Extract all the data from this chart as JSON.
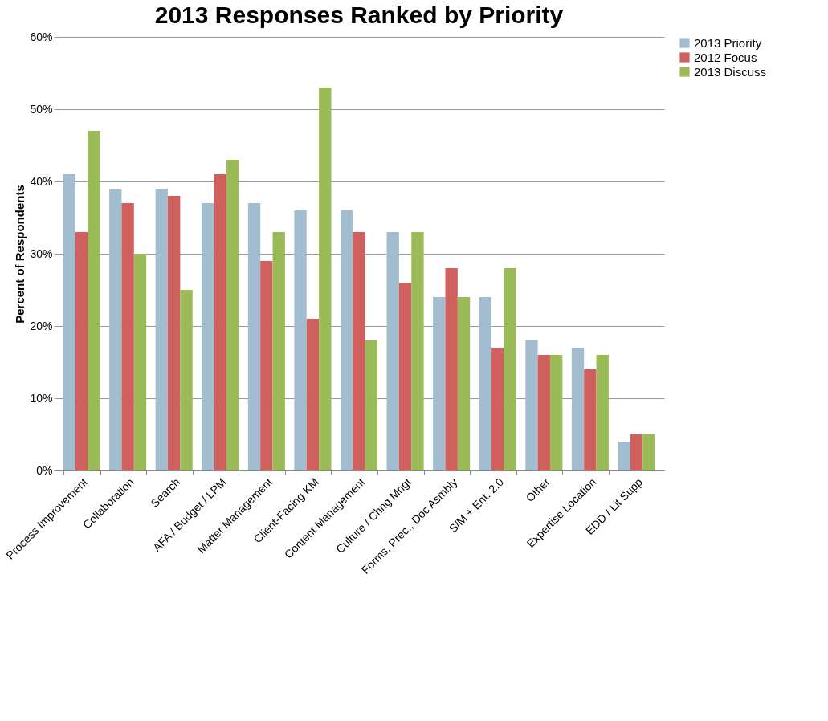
{
  "chart_data": {
    "type": "bar",
    "title": "2013 Responses Ranked by Priority",
    "ylabel": "Percent of Respondents",
    "categories": [
      "Process Improvement",
      "Collaboration",
      "Search",
      "AFA / Budget / LPM",
      "Matter Management",
      "Client-Facing KM",
      "Content Management",
      "Culture / Chng Mngt",
      "Forms, Prec., Doc Asmbly",
      "S/M + Ent. 2.0",
      "Other",
      "Expertise Location",
      "EDD / Lit Supp"
    ],
    "series": [
      {
        "name": "2013 Priority",
        "color": "#a3bdd0",
        "values": [
          41,
          39,
          39,
          37,
          37,
          36,
          36,
          33,
          24,
          24,
          18,
          17,
          4
        ]
      },
      {
        "name": "2012 Focus",
        "color": "#d0605e",
        "values": [
          33,
          37,
          38,
          41,
          29,
          21,
          33,
          26,
          28,
          17,
          16,
          14,
          5
        ]
      },
      {
        "name": "2013 Discuss",
        "color": "#9bbb59",
        "values": [
          47,
          30,
          25,
          43,
          33,
          53,
          18,
          33,
          24,
          28,
          16,
          16,
          5
        ]
      }
    ],
    "ylim": [
      0,
      60
    ],
    "yticks": [
      {
        "value": 0,
        "label": "0%"
      },
      {
        "value": 10,
        "label": "10%"
      },
      {
        "value": 20,
        "label": "20%"
      },
      {
        "value": 30,
        "label": "30%"
      },
      {
        "value": 40,
        "label": "40%"
      },
      {
        "value": 50,
        "label": "50%"
      },
      {
        "value": 60,
        "label": "60%"
      }
    ],
    "grid": "y",
    "legend": "right"
  }
}
